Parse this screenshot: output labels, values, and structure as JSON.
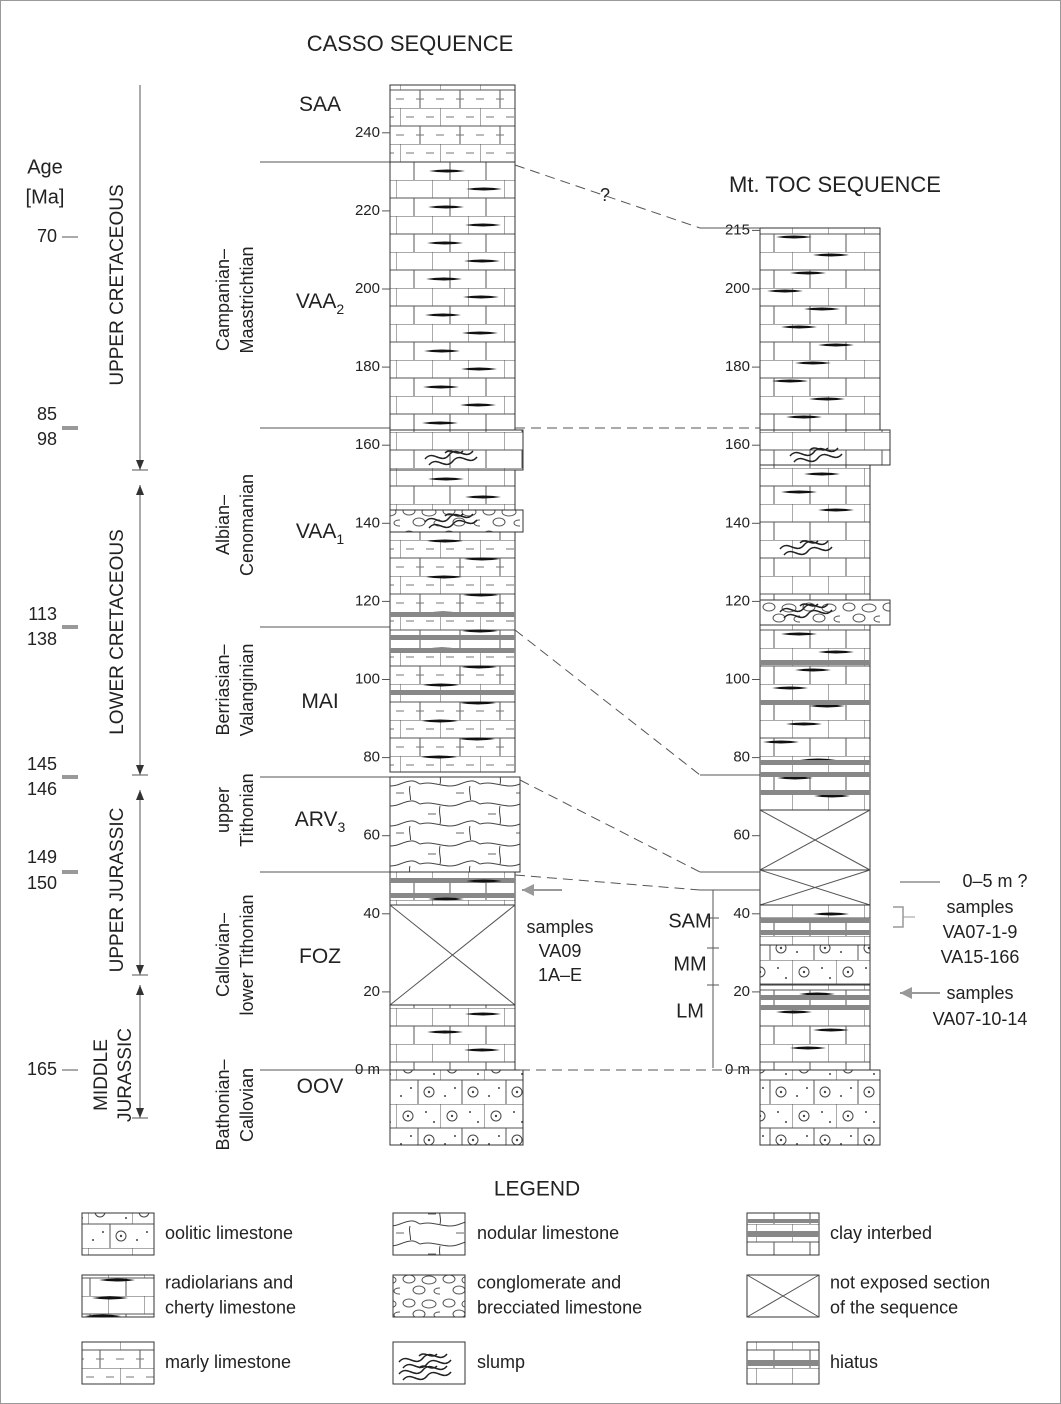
{
  "age": {
    "title": [
      "Age",
      "[Ma]"
    ],
    "ticks": [
      70,
      85,
      98,
      113,
      138,
      145,
      146,
      149,
      150,
      165
    ]
  },
  "periods": [
    [
      "UPPER CRETACEOUS"
    ],
    [
      "LOWER CRETACEOUS"
    ],
    [
      "UPPER JURASSIC"
    ],
    [
      "MIDDLE",
      "JURASSIC"
    ]
  ],
  "stages": [
    [
      "Campanian–",
      "Maastrichtian"
    ],
    [
      "Albian–",
      "Cenomanian"
    ],
    [
      "Berriasian–",
      "Valanginian"
    ],
    [
      "upper",
      "Tithonian"
    ],
    [
      "Callovian–",
      "lower Tithonian"
    ],
    [
      "Bathonian–",
      "Callovian"
    ]
  ],
  "casso": {
    "title": "CASSO SEQUENCE",
    "formations": [
      {
        "name": "SAA"
      },
      {
        "name": "VAA",
        "sub": "2"
      },
      {
        "name": "VAA",
        "sub": "1"
      },
      {
        "name": "MAI"
      },
      {
        "name": "ARV",
        "sub": "3"
      },
      {
        "name": "FOZ"
      },
      {
        "name": "OOV"
      }
    ],
    "depth_ticks": [
      240,
      220,
      200,
      180,
      160,
      140,
      120,
      100,
      80,
      60,
      40,
      20,
      {
        "value": 0,
        "label": "0 m"
      }
    ],
    "samples": [
      "samples",
      "VA09",
      "1A–E"
    ]
  },
  "toc": {
    "title": "Mt. TOC SEQUENCE",
    "units": [
      "SAM",
      "MM",
      "LM"
    ],
    "depth_ticks": [
      215,
      200,
      180,
      160,
      140,
      120,
      100,
      80,
      60,
      40,
      20,
      {
        "value": 0,
        "label": "0 m"
      }
    ],
    "gap": "0–5 m ?",
    "samples_upper": [
      "samples",
      "VA07-1-9",
      "VA15-166"
    ],
    "samples_lower": [
      "samples",
      "VA07-10-14"
    ]
  },
  "question": "?",
  "legend": {
    "title": "LEGEND",
    "items": [
      [
        "oolitic limestone"
      ],
      [
        "nodular limestone"
      ],
      [
        "clay interbed"
      ],
      [
        "radiolarians and",
        "cherty limestone"
      ],
      [
        "conglomerate and",
        "brecciated limestone"
      ],
      [
        "not exposed section",
        "of the sequence"
      ],
      [
        "marly limestone"
      ],
      [
        "slump"
      ],
      [
        "hiatus"
      ]
    ]
  }
}
